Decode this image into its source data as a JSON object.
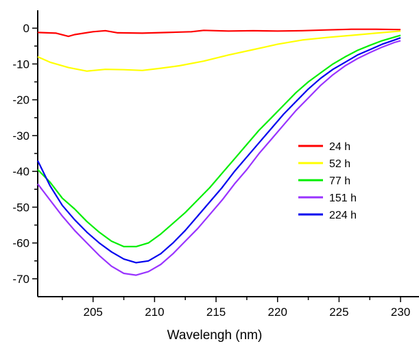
{
  "chart_data": {
    "type": "line",
    "title": "",
    "xlabel": "Wavelengh (nm)",
    "ylabel": "",
    "xlim": [
      200.5,
      231.5
    ],
    "ylim": [
      -75,
      5
    ],
    "x_ticks": [
      205,
      210,
      215,
      220,
      225,
      230
    ],
    "y_ticks": [
      0,
      -10,
      -20,
      -30,
      -40,
      -50,
      -60,
      -70
    ],
    "grid": false,
    "legend_position": "center-right",
    "series": [
      {
        "name": "24 h",
        "color": "#ff0000",
        "points": [
          [
            200.5,
            -1.2
          ],
          [
            202,
            -1.4
          ],
          [
            203,
            -2.3
          ],
          [
            203.5,
            -1.8
          ],
          [
            205,
            -1.0
          ],
          [
            206,
            -0.7
          ],
          [
            207,
            -1.3
          ],
          [
            209,
            -1.4
          ],
          [
            211,
            -1.2
          ],
          [
            213,
            -1.0
          ],
          [
            214,
            -0.6
          ],
          [
            216,
            -0.8
          ],
          [
            218,
            -0.7
          ],
          [
            220,
            -0.8
          ],
          [
            222,
            -0.7
          ],
          [
            224,
            -0.5
          ],
          [
            226,
            -0.3
          ],
          [
            228,
            -0.3
          ],
          [
            230,
            -0.4
          ]
        ]
      },
      {
        "name": "52 h",
        "color": "#ffff00",
        "points": [
          [
            200.5,
            -8.0
          ],
          [
            201.5,
            -9.5
          ],
          [
            203,
            -11.0
          ],
          [
            204.5,
            -12.0
          ],
          [
            206,
            -11.5
          ],
          [
            207.5,
            -11.6
          ],
          [
            209,
            -11.8
          ],
          [
            210.5,
            -11.2
          ],
          [
            212,
            -10.5
          ],
          [
            214,
            -9.2
          ],
          [
            216,
            -7.5
          ],
          [
            218,
            -6.0
          ],
          [
            220,
            -4.5
          ],
          [
            222,
            -3.3
          ],
          [
            224,
            -2.6
          ],
          [
            226,
            -2.0
          ],
          [
            228,
            -1.4
          ],
          [
            230,
            -0.8
          ]
        ]
      },
      {
        "name": "77 h",
        "color": "#00ee00",
        "points": [
          [
            200.5,
            -39.5
          ],
          [
            201.5,
            -43.0
          ],
          [
            202.5,
            -47.5
          ],
          [
            203.5,
            -50.5
          ],
          [
            204.5,
            -54.0
          ],
          [
            205.5,
            -57.0
          ],
          [
            206.5,
            -59.5
          ],
          [
            207.5,
            -61.0
          ],
          [
            208.5,
            -61.0
          ],
          [
            209.5,
            -60.0
          ],
          [
            210.5,
            -57.5
          ],
          [
            211.5,
            -54.5
          ],
          [
            212.5,
            -51.5
          ],
          [
            213.5,
            -48.0
          ],
          [
            214.5,
            -44.5
          ],
          [
            215.5,
            -40.5
          ],
          [
            216.5,
            -36.5
          ],
          [
            217.5,
            -32.5
          ],
          [
            218.5,
            -28.5
          ],
          [
            219.5,
            -25.0
          ],
          [
            220.5,
            -21.5
          ],
          [
            221.5,
            -18.0
          ],
          [
            222.5,
            -15.0
          ],
          [
            223.5,
            -12.5
          ],
          [
            224.5,
            -10.0
          ],
          [
            225.5,
            -8.0
          ],
          [
            226.5,
            -6.2
          ],
          [
            227.5,
            -4.8
          ],
          [
            228.5,
            -3.5
          ],
          [
            229.5,
            -2.5
          ],
          [
            230,
            -2.0
          ]
        ]
      },
      {
        "name": "151 h",
        "color": "#9933ff",
        "points": [
          [
            200.5,
            -43.5
          ],
          [
            201.5,
            -48.0
          ],
          [
            202.5,
            -52.5
          ],
          [
            203.5,
            -56.5
          ],
          [
            204.5,
            -60.0
          ],
          [
            205.5,
            -63.5
          ],
          [
            206.5,
            -66.5
          ],
          [
            207.5,
            -68.5
          ],
          [
            208.5,
            -69.0
          ],
          [
            209.5,
            -68.0
          ],
          [
            210.5,
            -66.0
          ],
          [
            211.5,
            -63.0
          ],
          [
            212.5,
            -59.5
          ],
          [
            213.5,
            -56.0
          ],
          [
            214.5,
            -52.0
          ],
          [
            215.5,
            -48.0
          ],
          [
            216.5,
            -43.5
          ],
          [
            217.5,
            -39.5
          ],
          [
            218.5,
            -35.0
          ],
          [
            219.5,
            -31.0
          ],
          [
            220.5,
            -27.0
          ],
          [
            221.5,
            -23.0
          ],
          [
            222.5,
            -19.5
          ],
          [
            223.5,
            -16.0
          ],
          [
            224.5,
            -13.0
          ],
          [
            225.5,
            -10.5
          ],
          [
            226.5,
            -8.5
          ],
          [
            227.5,
            -6.8
          ],
          [
            228.5,
            -5.3
          ],
          [
            229.5,
            -4.0
          ],
          [
            230,
            -3.5
          ]
        ]
      },
      {
        "name": "224 h",
        "color": "#0000ee",
        "points": [
          [
            200.5,
            -37.0
          ],
          [
            201.5,
            -44.0
          ],
          [
            202.5,
            -49.5
          ],
          [
            203.5,
            -53.5
          ],
          [
            204.5,
            -57.0
          ],
          [
            205.5,
            -60.0
          ],
          [
            206.5,
            -62.5
          ],
          [
            207.5,
            -64.5
          ],
          [
            208.5,
            -65.5
          ],
          [
            209.5,
            -65.0
          ],
          [
            210.5,
            -63.0
          ],
          [
            211.5,
            -60.0
          ],
          [
            212.5,
            -56.5
          ],
          [
            213.5,
            -52.5
          ],
          [
            214.5,
            -48.5
          ],
          [
            215.5,
            -44.5
          ],
          [
            216.5,
            -40.0
          ],
          [
            217.5,
            -36.0
          ],
          [
            218.5,
            -32.0
          ],
          [
            219.5,
            -28.0
          ],
          [
            220.5,
            -24.0
          ],
          [
            221.5,
            -20.5
          ],
          [
            222.5,
            -17.0
          ],
          [
            223.5,
            -14.0
          ],
          [
            224.5,
            -11.5
          ],
          [
            225.5,
            -9.5
          ],
          [
            226.5,
            -7.5
          ],
          [
            227.5,
            -6.0
          ],
          [
            228.5,
            -4.5
          ],
          [
            229.5,
            -3.3
          ],
          [
            230,
            -2.7
          ]
        ]
      }
    ]
  }
}
